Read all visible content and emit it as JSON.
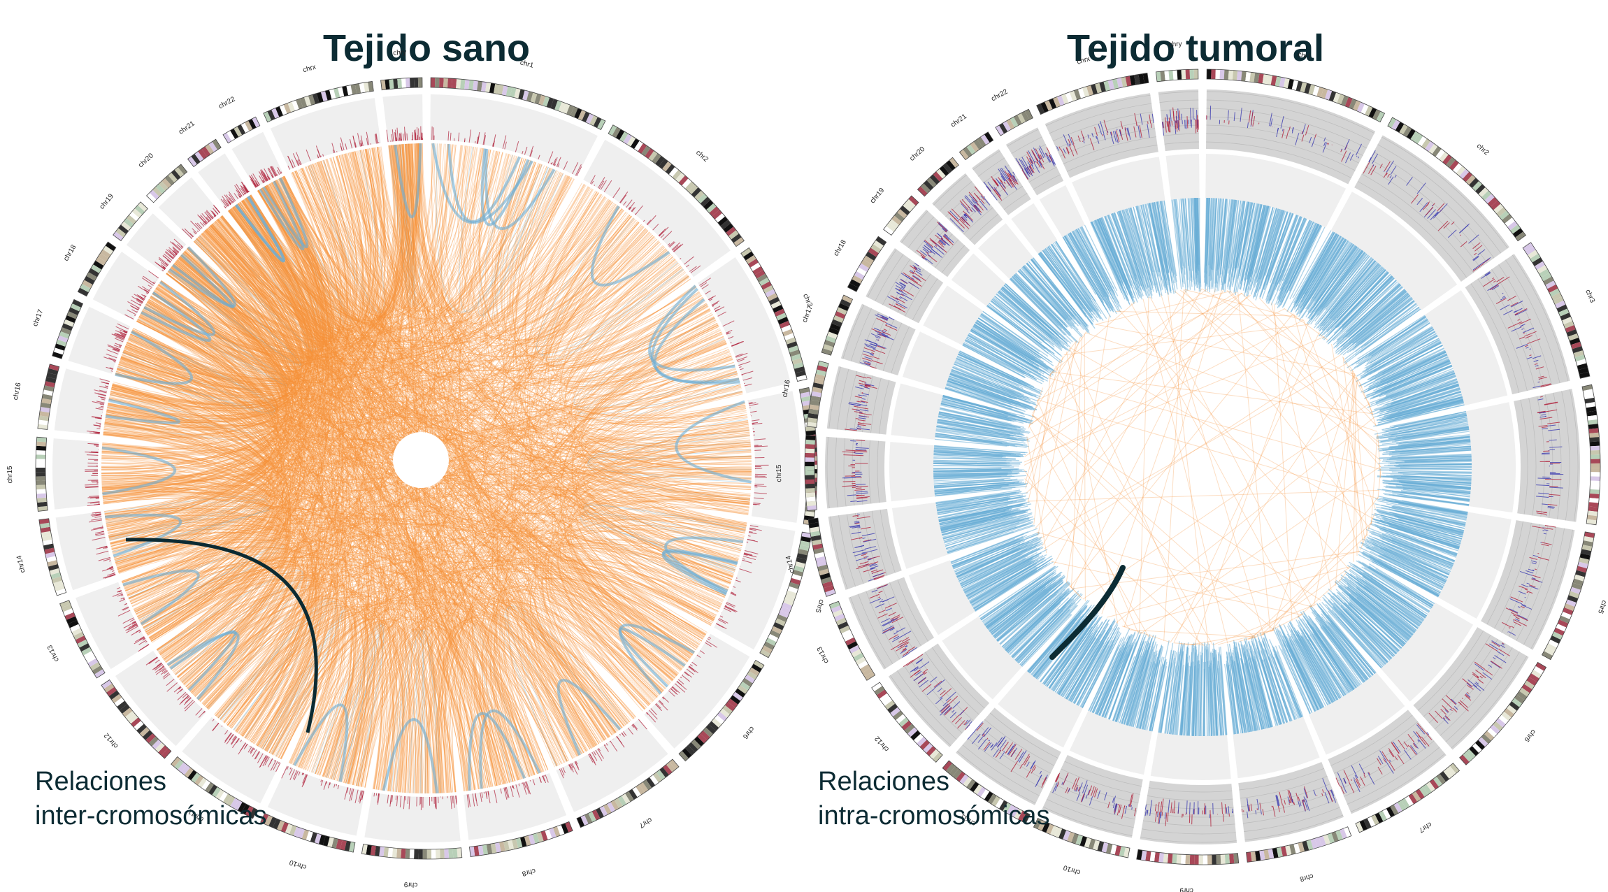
{
  "left_panel": {
    "title": "Tejido sano",
    "caption_line1": "Relaciones",
    "caption_line2": "inter-cromosómicas"
  },
  "right_panel": {
    "title": "Tejido tumoral",
    "caption_line1": "Relaciones",
    "caption_line2": "intra-cromosómicas"
  },
  "chromosomes": [
    "chr1",
    "chr2",
    "chr3",
    "chr4",
    "chr5",
    "chr6",
    "chr7",
    "chr8",
    "chr9",
    "chr10",
    "chr11",
    "chr12",
    "chr13",
    "chr14",
    "chr15",
    "chr16",
    "chr17",
    "chr18",
    "chr19",
    "chr20",
    "chr21",
    "chr22",
    "chrx",
    "chry"
  ],
  "chromosome_sizes_mb": [
    249,
    242,
    198,
    190,
    181,
    171,
    159,
    145,
    138,
    134,
    135,
    133,
    114,
    107,
    102,
    90,
    83,
    80,
    59,
    64,
    47,
    51,
    156,
    57
  ],
  "colors": {
    "inter_chromosomal": "#f7923a",
    "intra_chromosomal": "#6aaed6",
    "track_light": "#efefef",
    "track_dark": "#d4d4d4",
    "signal_red": "#b0203a",
    "signal_blue": "#3a3ab0",
    "pointer": "#0c2b33"
  }
}
